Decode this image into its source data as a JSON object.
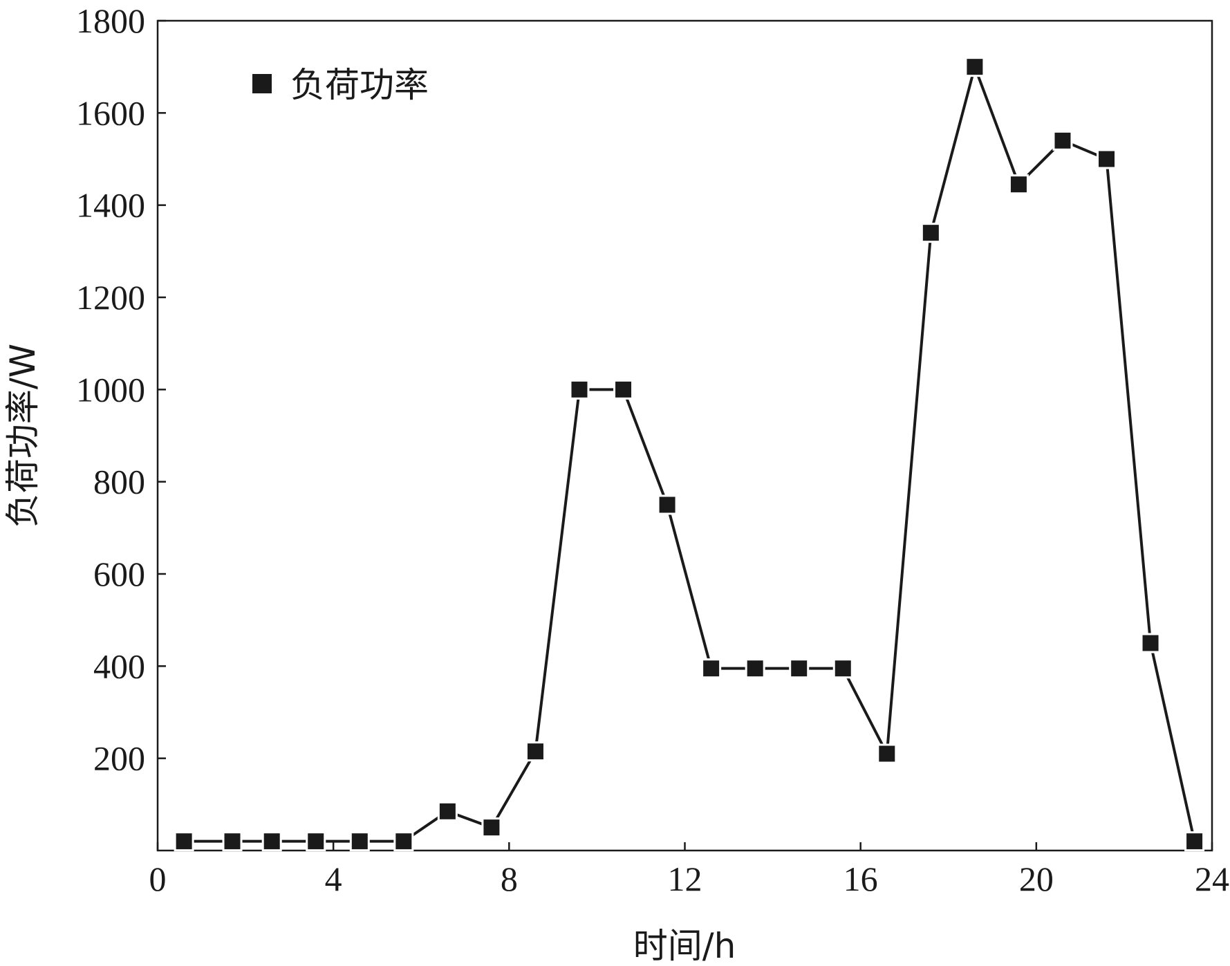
{
  "chart_data": {
    "type": "line",
    "title": "",
    "xlabel": "时间/h",
    "ylabel": "负荷功率/W",
    "xlim": [
      0,
      24
    ],
    "ylim": [
      0,
      1800
    ],
    "x_ticks": [
      "0",
      "4",
      "8",
      "12",
      "16",
      "20",
      "24"
    ],
    "y_ticks": [
      "200",
      "400",
      "600",
      "800",
      "1000",
      "1200",
      "1400",
      "1600",
      "1800"
    ],
    "grid": false,
    "legend_position": "top-left",
    "series": [
      {
        "name": "负荷功率",
        "color": "#1a1a1a",
        "marker": "square",
        "x": [
          0.6,
          1.7,
          2.6,
          3.6,
          4.6,
          5.6,
          6.6,
          7.6,
          8.6,
          9.6,
          10.6,
          11.6,
          12.6,
          13.6,
          14.6,
          15.6,
          16.6,
          17.6,
          18.6,
          19.6,
          20.6,
          21.6,
          22.6,
          23.6
        ],
        "values": [
          20,
          20,
          20,
          20,
          20,
          20,
          85,
          50,
          215,
          1000,
          1000,
          750,
          395,
          395,
          395,
          395,
          210,
          1340,
          1700,
          1445,
          1540,
          1500,
          450,
          20
        ]
      }
    ]
  }
}
